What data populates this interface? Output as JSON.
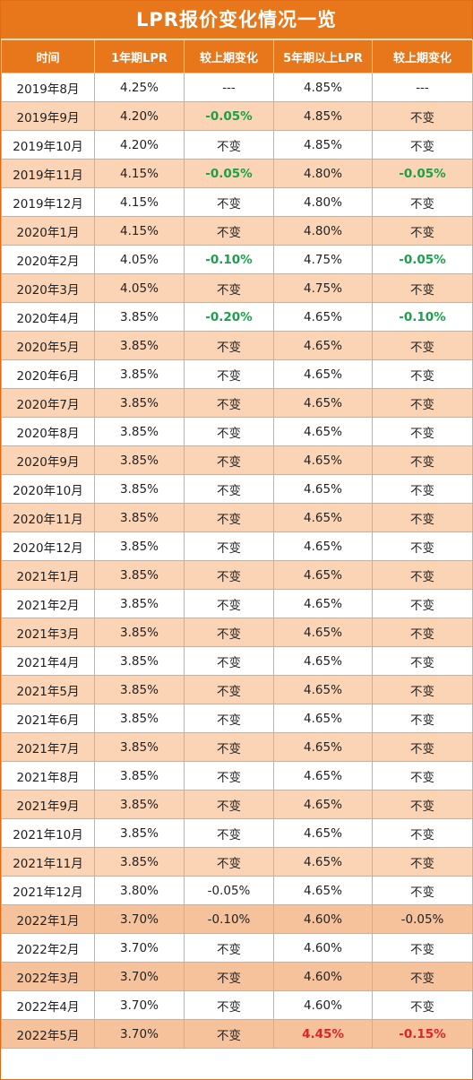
{
  "title": "LPR报价变化情况一览",
  "headers": [
    "时间",
    "1年期LPR",
    "较上期变化",
    "5年期以上LPR",
    "较上期变化"
  ],
  "colors": {
    "header_bg": "#e8761a",
    "stripe": "#fbd3b5",
    "decrease_green": "#1aa14a",
    "highlight_red": "#e02424"
  },
  "rows": [
    {
      "date": "2019年8月",
      "lpr1": "4.25%",
      "chg1": "---",
      "lpr5": "4.85%",
      "chg5": "---",
      "s1": "",
      "s4": "",
      "s5": ""
    },
    {
      "date": "2019年9月",
      "lpr1": "4.20%",
      "chg1": "-0.05%",
      "lpr5": "4.85%",
      "chg5": "不变",
      "s1": "green",
      "s4": "",
      "s5": ""
    },
    {
      "date": "2019年10月",
      "lpr1": "4.20%",
      "chg1": "不变",
      "lpr5": "4.85%",
      "chg5": "不变",
      "s1": "",
      "s4": "",
      "s5": ""
    },
    {
      "date": "2019年11月",
      "lpr1": "4.15%",
      "chg1": "-0.05%",
      "lpr5": "4.80%",
      "chg5": "-0.05%",
      "s1": "green",
      "s4": "",
      "s5": "green"
    },
    {
      "date": "2019年12月",
      "lpr1": "4.15%",
      "chg1": "不变",
      "lpr5": "4.80%",
      "chg5": "不变",
      "s1": "",
      "s4": "",
      "s5": ""
    },
    {
      "date": "2020年1月",
      "lpr1": "4.15%",
      "chg1": "不变",
      "lpr5": "4.80%",
      "chg5": "不变",
      "s1": "",
      "s4": "",
      "s5": ""
    },
    {
      "date": "2020年2月",
      "lpr1": "4.05%",
      "chg1": "-0.10%",
      "lpr5": "4.75%",
      "chg5": "-0.05%",
      "s1": "green",
      "s4": "",
      "s5": "green"
    },
    {
      "date": "2020年3月",
      "lpr1": "4.05%",
      "chg1": "不变",
      "lpr5": "4.75%",
      "chg5": "不变",
      "s1": "",
      "s4": "",
      "s5": ""
    },
    {
      "date": "2020年4月",
      "lpr1": "3.85%",
      "chg1": "-0.20%",
      "lpr5": "4.65%",
      "chg5": "-0.10%",
      "s1": "green",
      "s4": "",
      "s5": "green"
    },
    {
      "date": "2020年5月",
      "lpr1": "3.85%",
      "chg1": "不变",
      "lpr5": "4.65%",
      "chg5": "不变",
      "s1": "",
      "s4": "",
      "s5": ""
    },
    {
      "date": "2020年6月",
      "lpr1": "3.85%",
      "chg1": "不变",
      "lpr5": "4.65%",
      "chg5": "不变",
      "s1": "",
      "s4": "",
      "s5": ""
    },
    {
      "date": "2020年7月",
      "lpr1": "3.85%",
      "chg1": "不变",
      "lpr5": "4.65%",
      "chg5": "不变",
      "s1": "",
      "s4": "",
      "s5": ""
    },
    {
      "date": "2020年8月",
      "lpr1": "3.85%",
      "chg1": "不变",
      "lpr5": "4.65%",
      "chg5": "不变",
      "s1": "",
      "s4": "",
      "s5": ""
    },
    {
      "date": "2020年9月",
      "lpr1": "3.85%",
      "chg1": "不变",
      "lpr5": "4.65%",
      "chg5": "不变",
      "s1": "",
      "s4": "",
      "s5": ""
    },
    {
      "date": "2020年10月",
      "lpr1": "3.85%",
      "chg1": "不变",
      "lpr5": "4.65%",
      "chg5": "不变",
      "s1": "",
      "s4": "",
      "s5": ""
    },
    {
      "date": "2020年11月",
      "lpr1": "3.85%",
      "chg1": "不变",
      "lpr5": "4.65%",
      "chg5": "不变",
      "s1": "",
      "s4": "",
      "s5": ""
    },
    {
      "date": "2020年12月",
      "lpr1": "3.85%",
      "chg1": "不变",
      "lpr5": "4.65%",
      "chg5": "不变",
      "s1": "",
      "s4": "",
      "s5": ""
    },
    {
      "date": "2021年1月",
      "lpr1": "3.85%",
      "chg1": "不变",
      "lpr5": "4.65%",
      "chg5": "不变",
      "s1": "",
      "s4": "",
      "s5": ""
    },
    {
      "date": "2021年2月",
      "lpr1": "3.85%",
      "chg1": "不变",
      "lpr5": "4.65%",
      "chg5": "不变",
      "s1": "",
      "s4": "",
      "s5": ""
    },
    {
      "date": "2021年3月",
      "lpr1": "3.85%",
      "chg1": "不变",
      "lpr5": "4.65%",
      "chg5": "不变",
      "s1": "",
      "s4": "",
      "s5": ""
    },
    {
      "date": "2021年4月",
      "lpr1": "3.85%",
      "chg1": "不变",
      "lpr5": "4.65%",
      "chg5": "不变",
      "s1": "",
      "s4": "",
      "s5": ""
    },
    {
      "date": "2021年5月",
      "lpr1": "3.85%",
      "chg1": "不变",
      "lpr5": "4.65%",
      "chg5": "不变",
      "s1": "",
      "s4": "",
      "s5": ""
    },
    {
      "date": "2021年6月",
      "lpr1": "3.85%",
      "chg1": "不变",
      "lpr5": "4.65%",
      "chg5": "不变",
      "s1": "",
      "s4": "",
      "s5": ""
    },
    {
      "date": "2021年7月",
      "lpr1": "3.85%",
      "chg1": "不变",
      "lpr5": "4.65%",
      "chg5": "不变",
      "s1": "",
      "s4": "",
      "s5": ""
    },
    {
      "date": "2021年8月",
      "lpr1": "3.85%",
      "chg1": "不变",
      "lpr5": "4.65%",
      "chg5": "不变",
      "s1": "",
      "s4": "",
      "s5": ""
    },
    {
      "date": "2021年9月",
      "lpr1": "3.85%",
      "chg1": "不变",
      "lpr5": "4.65%",
      "chg5": "不变",
      "s1": "",
      "s4": "",
      "s5": ""
    },
    {
      "date": "2021年10月",
      "lpr1": "3.85%",
      "chg1": "不变",
      "lpr5": "4.65%",
      "chg5": "不变",
      "s1": "",
      "s4": "",
      "s5": ""
    },
    {
      "date": "2021年11月",
      "lpr1": "3.85%",
      "chg1": "不变",
      "lpr5": "4.65%",
      "chg5": "不变",
      "s1": "",
      "s4": "",
      "s5": ""
    },
    {
      "date": "2021年12月",
      "lpr1": "3.80%",
      "chg1": "-0.05%",
      "lpr5": "4.65%",
      "chg5": "不变",
      "s1": "",
      "s4": "",
      "s5": ""
    },
    {
      "date": "2022年1月",
      "lpr1": "3.70%",
      "chg1": "-0.10%",
      "lpr5": "4.60%",
      "chg5": "-0.05%",
      "s1": "",
      "s4": "",
      "s5": ""
    },
    {
      "date": "2022年2月",
      "lpr1": "3.70%",
      "chg1": "不变",
      "lpr5": "4.60%",
      "chg5": "不变",
      "s1": "",
      "s4": "",
      "s5": ""
    },
    {
      "date": "2022年3月",
      "lpr1": "3.70%",
      "chg1": "不变",
      "lpr5": "4.60%",
      "chg5": "不变",
      "s1": "",
      "s4": "",
      "s5": ""
    },
    {
      "date": "2022年4月",
      "lpr1": "3.70%",
      "chg1": "不变",
      "lpr5": "4.60%",
      "chg5": "不变",
      "s1": "",
      "s4": "",
      "s5": ""
    },
    {
      "date": "2022年5月",
      "lpr1": "3.70%",
      "chg1": "不变",
      "lpr5": "4.45%",
      "chg5": "-0.15%",
      "s1": "",
      "s4": "red",
      "s5": "red"
    }
  ]
}
